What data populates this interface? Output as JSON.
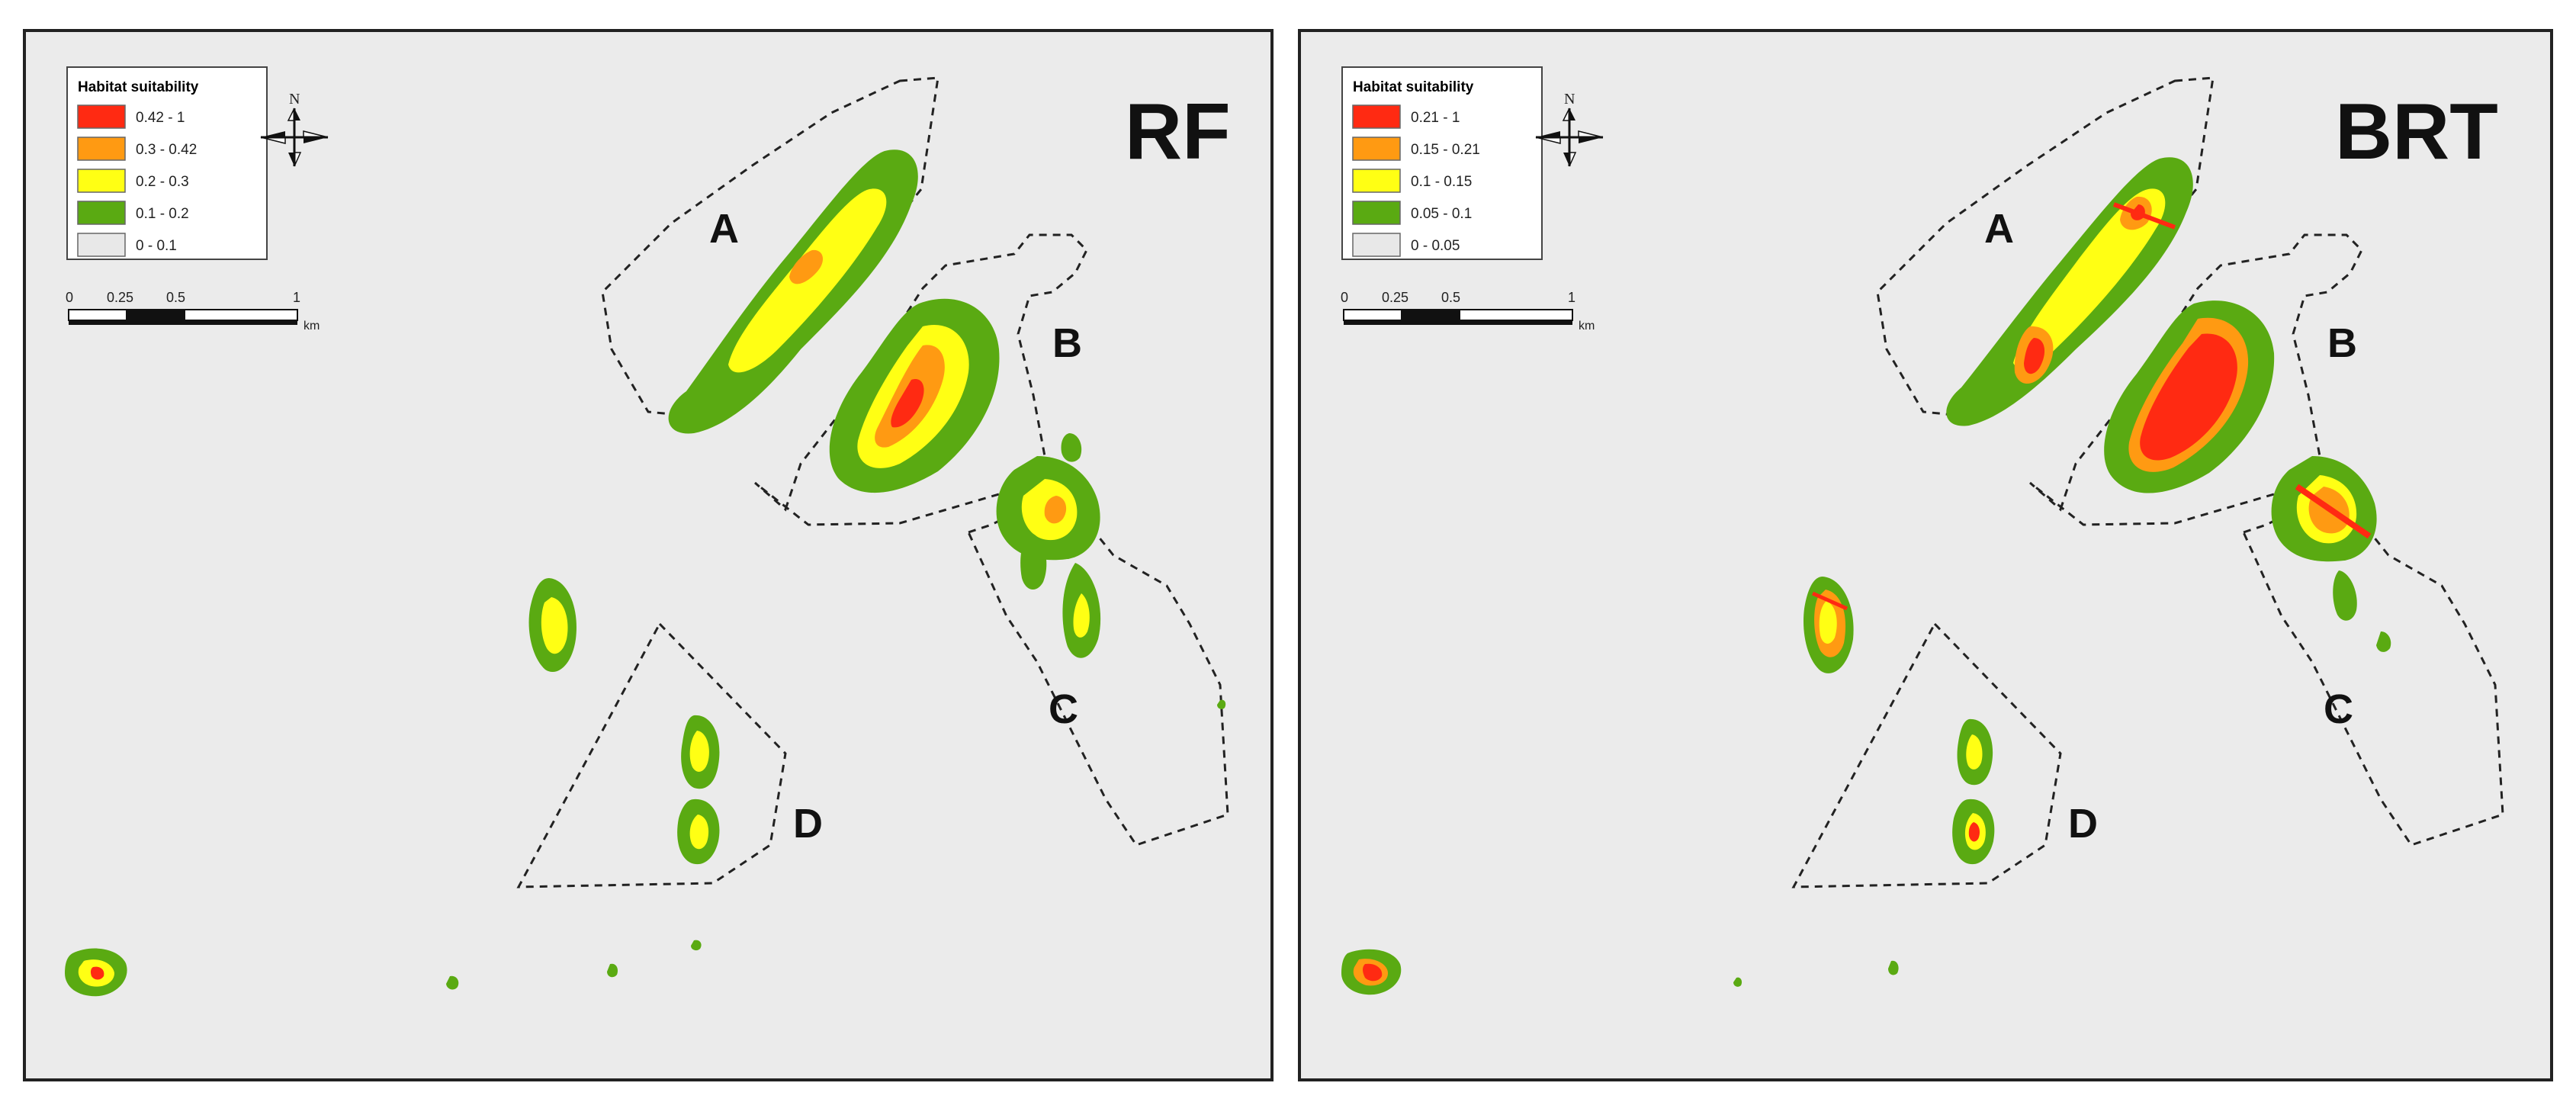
{
  "panels": [
    {
      "model": "RF",
      "legend": {
        "title": "Habitat suitability",
        "classes": [
          {
            "label": "0.42 - 1",
            "color": "#ff2a12"
          },
          {
            "label": "0.3 - 0.42",
            "color": "#ff9a12"
          },
          {
            "label": "0.2 - 0.3",
            "color": "#ffff14"
          },
          {
            "label": "0.1 - 0.2",
            "color": "#5aaa12"
          },
          {
            "label": "0 - 0.1",
            "color": "#e8e8e8"
          }
        ]
      },
      "scalebar": {
        "ticks": [
          "0",
          "0.25",
          "0.5",
          "1"
        ],
        "unit": "km"
      },
      "north_arrow": {
        "label": "N",
        "icon": "north-arrow-icon"
      },
      "zones": [
        "A",
        "B",
        "C",
        "D"
      ]
    },
    {
      "model": "BRT",
      "legend": {
        "title": "Habitat suitability",
        "classes": [
          {
            "label": "0.21 - 1",
            "color": "#ff2a12"
          },
          {
            "label": "0.15 - 0.21",
            "color": "#ff9a12"
          },
          {
            "label": "0.1 - 0.15",
            "color": "#ffff14"
          },
          {
            "label": "0.05 - 0.1",
            "color": "#5aaa12"
          },
          {
            "label": "0 - 0.05",
            "color": "#e8e8e8"
          }
        ]
      },
      "scalebar": {
        "ticks": [
          "0",
          "0.25",
          "0.5",
          "1"
        ],
        "unit": "km"
      },
      "north_arrow": {
        "label": "N",
        "icon": "north-arrow-icon"
      },
      "zones": [
        "A",
        "B",
        "C",
        "D"
      ]
    }
  ]
}
